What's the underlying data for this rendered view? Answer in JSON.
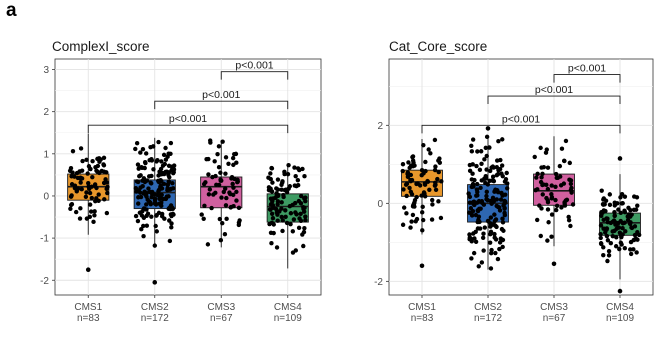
{
  "panel_label": "a",
  "chart_data": [
    {
      "type": "box",
      "title": "ComplexI_score",
      "categories": [
        "CMS1",
        "CMS2",
        "CMS3",
        "CMS4"
      ],
      "n_labels": [
        "n=83",
        "n=172",
        "n=67",
        "n=109"
      ],
      "ylim": [
        -2.35,
        3.25
      ],
      "yticks": [
        -2,
        -1,
        0,
        1,
        2,
        3
      ],
      "grid": true,
      "box_colors": [
        "#E8972B",
        "#2E67B2",
        "#D0609F",
        "#3E9B63"
      ],
      "boxes": [
        {
          "q1": -0.1,
          "median": 0.22,
          "q3": 0.52,
          "whisker_low": -0.92,
          "whisker_high": 1.48
        },
        {
          "q1": -0.3,
          "median": 0.08,
          "q3": 0.38,
          "whisker_low": -1.2,
          "whisker_high": 1.38
        },
        {
          "q1": -0.28,
          "median": 0.22,
          "q3": 0.45,
          "whisker_low": -1.22,
          "whisker_high": 1.32
        },
        {
          "q1": -0.62,
          "median": -0.25,
          "q3": 0.05,
          "whisker_low": -1.72,
          "whisker_high": 0.74
        }
      ],
      "outliers": [
        {
          "group": 0,
          "value": -1.75
        },
        {
          "group": 1,
          "value": -2.05
        }
      ],
      "comparisons": [
        {
          "from": 2,
          "to": 3,
          "label": "p<0.001",
          "y": 2.95
        },
        {
          "from": 1,
          "to": 3,
          "label": "p<0.001",
          "y": 2.25
        },
        {
          "from": 0,
          "to": 3,
          "label": "p<0.001",
          "y": 1.68
        }
      ]
    },
    {
      "type": "box",
      "title": "Cat_Core_score",
      "categories": [
        "CMS1",
        "CMS2",
        "CMS3",
        "CMS4"
      ],
      "n_labels": [
        "n=83",
        "n=172",
        "n=67",
        "n=109"
      ],
      "ylim": [
        -2.35,
        3.7
      ],
      "yticks": [
        -2,
        0,
        2
      ],
      "grid": true,
      "box_colors": [
        "#E8972B",
        "#2E67B2",
        "#D0609F",
        "#3E9B63"
      ],
      "boxes": [
        {
          "q1": 0.18,
          "median": 0.55,
          "q3": 0.85,
          "whisker_low": -0.8,
          "whisker_high": 1.65
        },
        {
          "q1": -0.48,
          "median": 0.0,
          "q3": 0.48,
          "whisker_low": -1.7,
          "whisker_high": 1.72
        },
        {
          "q1": -0.05,
          "median": 0.32,
          "q3": 0.75,
          "whisker_low": -1.1,
          "whisker_high": 1.72
        },
        {
          "q1": -0.82,
          "median": -0.5,
          "q3": -0.25,
          "whisker_low": -1.95,
          "whisker_high": 0.75
        }
      ],
      "outliers": [
        {
          "group": 0,
          "value": -1.6
        },
        {
          "group": 1,
          "value": 1.92
        },
        {
          "group": 2,
          "value": -1.55
        },
        {
          "group": 3,
          "value": 1.15
        },
        {
          "group": 3,
          "value": -2.25
        }
      ],
      "comparisons": [
        {
          "from": 2,
          "to": 3,
          "label": "p<0.001",
          "y": 3.3
        },
        {
          "from": 1,
          "to": 3,
          "label": "p<0.001",
          "y": 2.75
        },
        {
          "from": 0,
          "to": 3,
          "label": "p<0.001",
          "y": 2.0
        }
      ]
    }
  ]
}
